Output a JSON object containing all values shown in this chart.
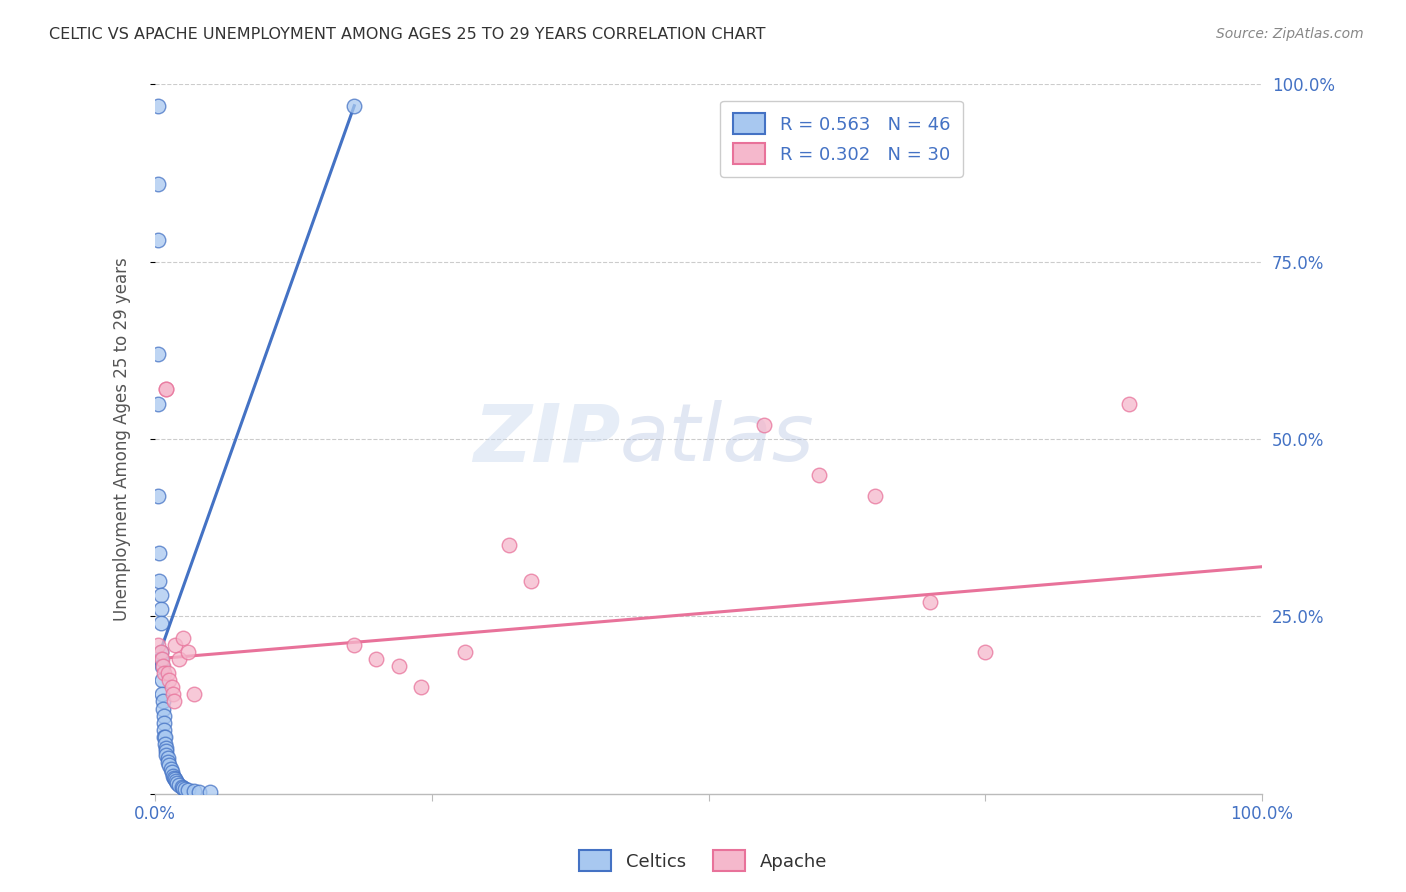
{
  "title": "CELTIC VS APACHE UNEMPLOYMENT AMONG AGES 25 TO 29 YEARS CORRELATION CHART",
  "source": "Source: ZipAtlas.com",
  "ylabel": "Unemployment Among Ages 25 to 29 years",
  "watermark_zip": "ZIP",
  "watermark_atlas": "atlas",
  "xlim": [
    0,
    1.0
  ],
  "ylim": [
    0,
    1.0
  ],
  "celtic_color": "#A8C8F0",
  "apache_color": "#F5B8CC",
  "celtic_edge_color": "#4472C4",
  "apache_edge_color": "#E8729A",
  "celtic_line_color": "#4472C4",
  "apache_line_color": "#E8729A",
  "R_celtic": "0.563",
  "N_celtic": "46",
  "R_apache": "0.302",
  "N_apache": "30",
  "background_color": "#FFFFFF",
  "grid_color": "#CCCCCC",
  "tick_label_color": "#4472C4",
  "title_color": "#333333",
  "source_color": "#888888",
  "ylabel_color": "#555555",
  "celtic_scatter_x": [
    0.003,
    0.003,
    0.003,
    0.003,
    0.003,
    0.003,
    0.004,
    0.004,
    0.005,
    0.005,
    0.005,
    0.005,
    0.005,
    0.006,
    0.006,
    0.006,
    0.007,
    0.007,
    0.008,
    0.008,
    0.008,
    0.008,
    0.009,
    0.009,
    0.01,
    0.01,
    0.01,
    0.012,
    0.012,
    0.013,
    0.014,
    0.015,
    0.016,
    0.017,
    0.018,
    0.019,
    0.02,
    0.022,
    0.024,
    0.025,
    0.027,
    0.03,
    0.035,
    0.04,
    0.05,
    0.18
  ],
  "celtic_scatter_y": [
    0.97,
    0.86,
    0.78,
    0.62,
    0.55,
    0.42,
    0.34,
    0.3,
    0.28,
    0.26,
    0.24,
    0.2,
    0.19,
    0.18,
    0.16,
    0.14,
    0.13,
    0.12,
    0.11,
    0.1,
    0.09,
    0.08,
    0.08,
    0.07,
    0.065,
    0.06,
    0.055,
    0.05,
    0.045,
    0.04,
    0.035,
    0.03,
    0.025,
    0.022,
    0.02,
    0.018,
    0.015,
    0.012,
    0.01,
    0.008,
    0.006,
    0.005,
    0.004,
    0.003,
    0.002,
    0.97
  ],
  "apache_scatter_x": [
    0.003,
    0.005,
    0.006,
    0.007,
    0.008,
    0.01,
    0.01,
    0.012,
    0.013,
    0.015,
    0.016,
    0.017,
    0.018,
    0.022,
    0.025,
    0.03,
    0.035,
    0.18,
    0.2,
    0.22,
    0.24,
    0.28,
    0.32,
    0.34,
    0.55,
    0.6,
    0.65,
    0.7,
    0.75,
    0.88
  ],
  "apache_scatter_y": [
    0.21,
    0.2,
    0.19,
    0.18,
    0.17,
    0.57,
    0.57,
    0.17,
    0.16,
    0.15,
    0.14,
    0.13,
    0.21,
    0.19,
    0.22,
    0.2,
    0.14,
    0.21,
    0.19,
    0.18,
    0.15,
    0.2,
    0.35,
    0.3,
    0.52,
    0.45,
    0.42,
    0.27,
    0.2,
    0.55
  ],
  "celtic_trend_x": [
    0.0,
    0.18
  ],
  "celtic_trend_y": [
    0.18,
    0.97
  ],
  "apache_trend_x": [
    0.0,
    1.0
  ],
  "apache_trend_y": [
    0.19,
    0.32
  ]
}
